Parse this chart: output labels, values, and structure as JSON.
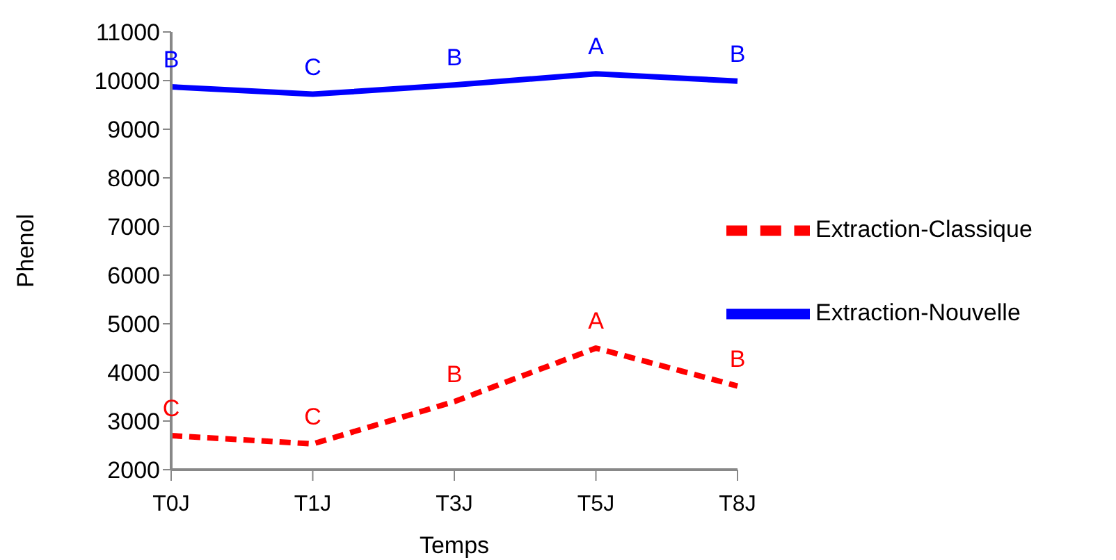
{
  "chart_data": {
    "type": "line",
    "xlabel": "Temps",
    "ylabel": "Phenol",
    "categories": [
      "T0J",
      "T1J",
      "T3J",
      "T5J",
      "T8J"
    ],
    "series": [
      {
        "name": "Extraction-Classique",
        "color": "#ff0000",
        "line_style": "dashed",
        "values": [
          2700,
          2530,
          3400,
          4500,
          3720
        ]
      },
      {
        "name": "Extraction-Nouvelle",
        "color": "#0000ff",
        "line_style": "solid",
        "values": [
          9870,
          9720,
          9910,
          10140,
          9990
        ]
      }
    ],
    "ylim": [
      2000,
      11000
    ],
    "yticks": [
      2000,
      3000,
      4000,
      5000,
      6000,
      7000,
      8000,
      9000,
      10000,
      11000
    ],
    "grid": false,
    "legend": "right",
    "marker": "none",
    "annotations": [
      {
        "text": "C",
        "x": "T0J",
        "y": 2700
      },
      {
        "text": "C",
        "x": "T1J",
        "y": 2530
      },
      {
        "text": "B",
        "x": "T3J",
        "y": 3400
      },
      {
        "text": "A",
        "x": "T5J",
        "y": 4500
      },
      {
        "text": "B",
        "x": "T8J",
        "y": 3720
      },
      {
        "text": "B",
        "x": "T0J",
        "y": 9870
      },
      {
        "text": "C",
        "x": "T1J",
        "y": 9720
      },
      {
        "text": "B",
        "x": "T3J",
        "y": 9910
      },
      {
        "text": "A",
        "x": "T5J",
        "y": 10140
      },
      {
        "text": "B",
        "x": "T8J",
        "y": 9990
      }
    ]
  }
}
